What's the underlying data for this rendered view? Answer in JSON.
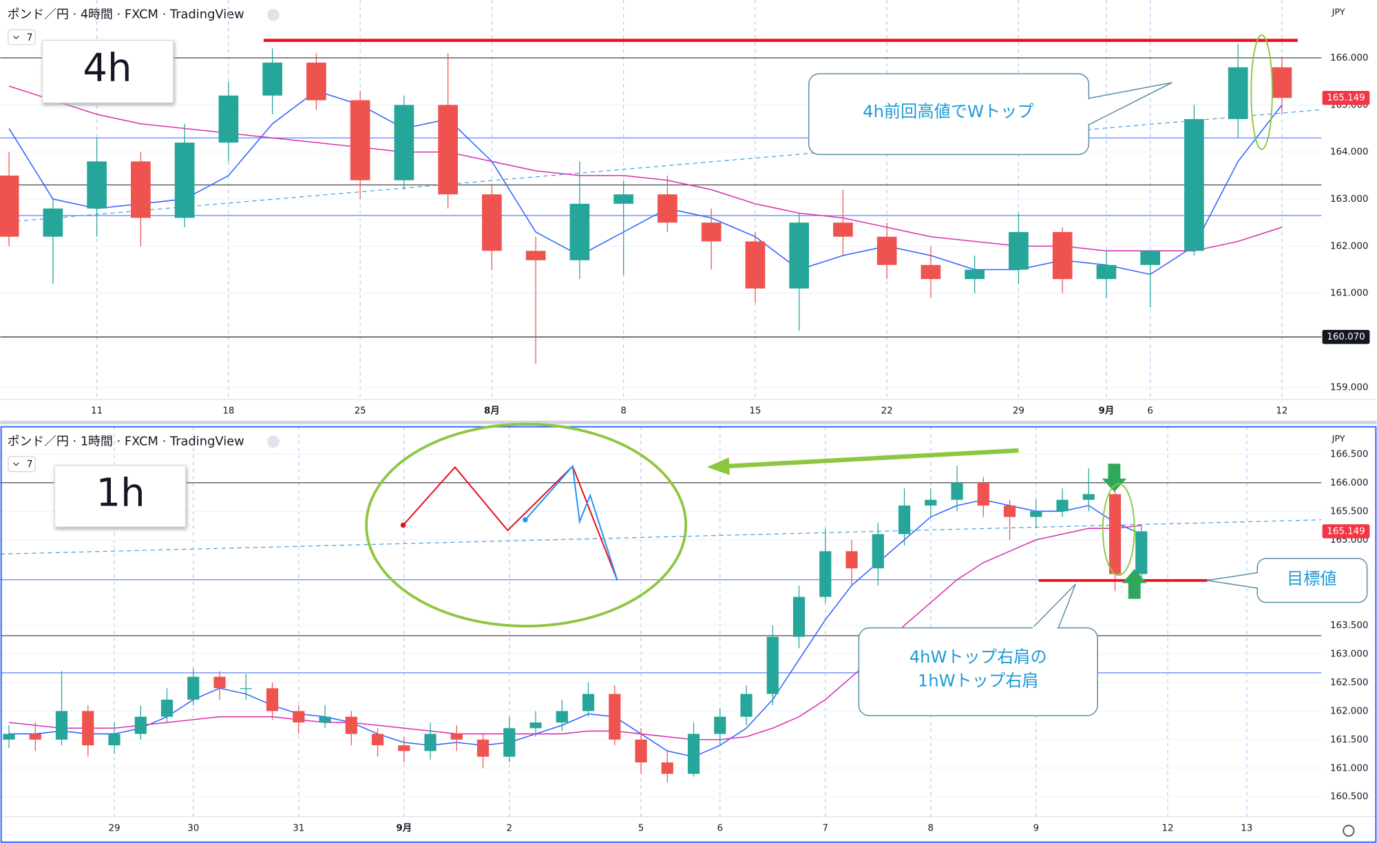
{
  "chart_data": [
    {
      "type": "candlestick",
      "title": "ポンド／円 · 4時間 · FXCM · TradingView",
      "currency": "JPY",
      "indicator_count": 7,
      "badge": "4h",
      "categories": [
        null,
        null,
        "11",
        null,
        null,
        "18",
        null,
        null,
        "25",
        null,
        null,
        "8月",
        null,
        null,
        "8",
        null,
        null,
        "15",
        null,
        null,
        "22",
        null,
        null,
        "29",
        null,
        "9月",
        "6",
        null,
        null,
        "12"
      ],
      "open": [
        163.5,
        162.2,
        162.8,
        163.8,
        162.6,
        164.2,
        165.2,
        165.9,
        165.1,
        163.4,
        165,
        163.1,
        161.9,
        161.7,
        162.9,
        163.1,
        162.5,
        162.1,
        161.1,
        162.5,
        162.2,
        161.6,
        161.3,
        161.5,
        162.3,
        161.3,
        161.6,
        161.9,
        164.7,
        165.8
      ],
      "high": [
        164,
        163,
        164.3,
        164,
        164.6,
        165.5,
        166.2,
        166.1,
        165.3,
        165.2,
        166.1,
        163.3,
        162.2,
        163.8,
        163.4,
        163.5,
        162.8,
        162.3,
        162.7,
        163.2,
        162.5,
        162,
        161.8,
        162.7,
        162.4,
        161.9,
        161.9,
        165,
        166.3,
        166
      ],
      "low": [
        162,
        161.2,
        162.2,
        162,
        162.4,
        163.8,
        164.8,
        164.9,
        163,
        163.2,
        162.8,
        161.5,
        159.5,
        161.3,
        161.4,
        162.3,
        161.5,
        160.8,
        160.2,
        161.8,
        161.3,
        160.9,
        161,
        161.2,
        161,
        160.9,
        160.7,
        161.8,
        164.3,
        164.8
      ],
      "close": [
        162.2,
        162.8,
        163.8,
        162.6,
        164.2,
        165.2,
        165.9,
        165.1,
        163.4,
        165,
        163.1,
        161.9,
        161.7,
        162.9,
        163.1,
        162.5,
        162.1,
        161.1,
        162.5,
        162.2,
        161.6,
        161.3,
        161.5,
        162.3,
        161.3,
        161.6,
        161.9,
        164.7,
        165.8,
        165.149
      ],
      "up_color": "#26a69a",
      "down_color": "#ef5350",
      "moving_averages": [
        {
          "color": "#2962ff",
          "values": [
            164.5,
            163.0,
            162.8,
            162.9,
            163.0,
            163.5,
            164.6,
            165.3,
            165.0,
            164.5,
            164.7,
            163.8,
            162.3,
            161.8,
            162.3,
            162.8,
            162.6,
            162.2,
            161.5,
            161.8,
            162.0,
            161.8,
            161.5,
            161.5,
            161.7,
            161.6,
            161.4,
            162.0,
            163.8,
            165.0
          ]
        },
        {
          "color": "#d62fb0",
          "values": [
            165.4,
            165.1,
            164.8,
            164.6,
            164.5,
            164.4,
            164.3,
            164.2,
            164.1,
            164.0,
            164.0,
            163.8,
            163.6,
            163.5,
            163.5,
            163.4,
            163.2,
            162.9,
            162.7,
            162.6,
            162.4,
            162.2,
            162.1,
            162.0,
            162.0,
            161.9,
            161.9,
            161.9,
            162.1,
            162.4
          ]
        }
      ],
      "hlines": [
        {
          "value": 166.0,
          "color": "#444"
        },
        {
          "value": 163.3,
          "color": "#444"
        },
        {
          "value": 160.07,
          "color": "#222"
        },
        {
          "value": 162.65,
          "color": "#5b7fff"
        },
        {
          "value": 164.3,
          "color": "#5b7fff"
        }
      ],
      "trendline": [
        162.5,
        164.9
      ],
      "price_labels": [
        {
          "value": 165.149,
          "label": "165.149",
          "color": "#f23645"
        },
        {
          "value": 160.07,
          "label": "160.070",
          "color": "#131722"
        }
      ],
      "ylim": [
        158.74,
        167.23
      ],
      "yticks": [
        {
          "value": 159,
          "label": "159.000"
        },
        {
          "value": 160,
          "label": "160.000"
        },
        {
          "value": 161,
          "label": "161.000"
        },
        {
          "value": 162,
          "label": "162.000"
        },
        {
          "value": 163,
          "label": "163.000"
        },
        {
          "value": 164,
          "label": "164.000"
        },
        {
          "value": 165,
          "label": "165.000"
        },
        {
          "value": 166,
          "label": "166.000"
        }
      ]
    },
    {
      "type": "candlestick",
      "title": "ポンド／円 · 1時間 · FXCM · TradingView",
      "currency": "JPY",
      "indicator_count": 7,
      "badge": "1h",
      "categories": [
        null,
        null,
        null,
        null,
        "29",
        null,
        null,
        "30",
        null,
        null,
        null,
        "31",
        null,
        null,
        null,
        "9月",
        null,
        null,
        null,
        "2",
        null,
        null,
        null,
        null,
        "5",
        null,
        null,
        "6",
        null,
        null,
        null,
        "7",
        null,
        null,
        null,
        "8",
        null,
        null,
        null,
        "9",
        null,
        null,
        null,
        null,
        "12",
        null,
        null,
        "13"
      ],
      "open": [
        161.5,
        161.6,
        161.5,
        162.0,
        161.4,
        161.6,
        161.9,
        162.2,
        162.6,
        162.4,
        162.4,
        162.0,
        161.8,
        161.9,
        161.6,
        161.4,
        161.3,
        161.6,
        161.5,
        161.2,
        161.7,
        161.8,
        162.0,
        162.3,
        161.5,
        161.1,
        160.9,
        161.6,
        161.9,
        162.3,
        163.3,
        164.0,
        164.8,
        164.5,
        165.1,
        165.6,
        165.7,
        166.0,
        165.6,
        165.4,
        165.5,
        165.7,
        165.8,
        164.4,
        null,
        null,
        null,
        null
      ],
      "high": [
        161.75,
        161.8,
        162.7,
        162.1,
        161.8,
        162.1,
        162.4,
        162.75,
        162.7,
        162.65,
        162.5,
        162.1,
        162.1,
        162.0,
        161.7,
        161.55,
        161.8,
        161.75,
        161.6,
        161.9,
        162.0,
        162.2,
        162.5,
        162.45,
        161.7,
        161.3,
        161.8,
        162.05,
        162.45,
        163.5,
        164.2,
        165.2,
        165.0,
        165.3,
        165.9,
        165.9,
        166.3,
        166.1,
        165.7,
        165.7,
        165.9,
        166.25,
        165.9,
        165.25,
        null,
        null,
        null,
        null
      ],
      "low": [
        161.35,
        161.3,
        161.4,
        161.2,
        161.25,
        161.5,
        161.8,
        162.1,
        162.2,
        162.2,
        161.85,
        161.6,
        161.7,
        161.4,
        161.2,
        161.1,
        161.15,
        161.3,
        161.0,
        161.1,
        161.55,
        161.65,
        161.9,
        161.4,
        160.9,
        160.75,
        160.85,
        161.4,
        161.75,
        162.1,
        163.1,
        163.9,
        164.2,
        164.2,
        164.9,
        165.4,
        165.5,
        165.4,
        165.0,
        165.2,
        165.4,
        165.5,
        164.1,
        164.3,
        null,
        null,
        null,
        null
      ],
      "close": [
        161.6,
        161.5,
        162.0,
        161.4,
        161.6,
        161.9,
        162.2,
        162.6,
        162.4,
        162.4,
        162.0,
        161.8,
        161.9,
        161.6,
        161.4,
        161.3,
        161.6,
        161.5,
        161.2,
        161.7,
        161.8,
        162.0,
        162.3,
        161.5,
        161.1,
        160.9,
        161.6,
        161.9,
        162.3,
        163.3,
        164.0,
        164.8,
        164.5,
        165.1,
        165.6,
        165.7,
        166.0,
        165.6,
        165.4,
        165.5,
        165.7,
        165.8,
        164.4,
        165.149,
        null,
        null,
        null,
        null
      ],
      "up_color": "#26a69a",
      "down_color": "#ef5350",
      "moving_averages": [
        {
          "color": "#2962ff",
          "values": [
            161.6,
            161.6,
            161.65,
            161.6,
            161.6,
            161.7,
            161.9,
            162.2,
            162.4,
            162.3,
            162.1,
            161.95,
            161.9,
            161.8,
            161.6,
            161.45,
            161.4,
            161.45,
            161.4,
            161.45,
            161.6,
            161.75,
            161.95,
            161.9,
            161.6,
            161.3,
            161.2,
            161.4,
            161.7,
            162.2,
            162.9,
            163.6,
            164.2,
            164.6,
            165.0,
            165.4,
            165.6,
            165.7,
            165.6,
            165.5,
            165.5,
            165.6,
            165.3,
            165.1,
            null,
            null,
            null,
            null
          ]
        },
        {
          "color": "#d62fb0",
          "values": [
            161.8,
            161.75,
            161.7,
            161.7,
            161.7,
            161.75,
            161.8,
            161.85,
            161.9,
            161.9,
            161.9,
            161.85,
            161.8,
            161.8,
            161.75,
            161.7,
            161.65,
            161.6,
            161.6,
            161.6,
            161.6,
            161.6,
            161.65,
            161.65,
            161.6,
            161.55,
            161.5,
            161.5,
            161.55,
            161.7,
            161.9,
            162.2,
            162.6,
            163.0,
            163.5,
            163.9,
            164.3,
            164.6,
            164.8,
            165.0,
            165.1,
            165.2,
            165.2,
            165.25,
            null,
            null,
            null,
            null
          ]
        }
      ],
      "hlines": [
        {
          "value": 166.0,
          "color": "#444"
        },
        {
          "value": 163.32,
          "color": "#444"
        },
        {
          "value": 162.67,
          "color": "#5b7fff"
        },
        {
          "value": 164.3,
          "color": "#5b7fff"
        }
      ],
      "trendline": [
        164.75,
        165.35
      ],
      "price_labels": [
        {
          "value": 165.149,
          "label": "165.149",
          "color": "#f23645"
        }
      ],
      "ylim": [
        160.15,
        166.98
      ],
      "yticks": [
        {
          "value": 160.5,
          "label": "160.500"
        },
        {
          "value": 161,
          "label": "161.000"
        },
        {
          "value": 161.5,
          "label": "161.500"
        },
        {
          "value": 162,
          "label": "162.000"
        },
        {
          "value": 162.5,
          "label": "162.500"
        },
        {
          "value": 163,
          "label": "163.000"
        },
        {
          "value": 163.5,
          "label": "163.500"
        },
        {
          "value": 165,
          "label": "165.000"
        },
        {
          "value": 165.5,
          "label": "165.500"
        },
        {
          "value": 166,
          "label": "166.000"
        },
        {
          "value": 166.5,
          "label": "166.500"
        }
      ]
    }
  ],
  "annotations": {
    "top_callout": "4h前回高値でWトップ",
    "target": "目標値",
    "shoulder": [
      "4hWトップ右肩の",
      "1hWトップ右肩"
    ]
  }
}
